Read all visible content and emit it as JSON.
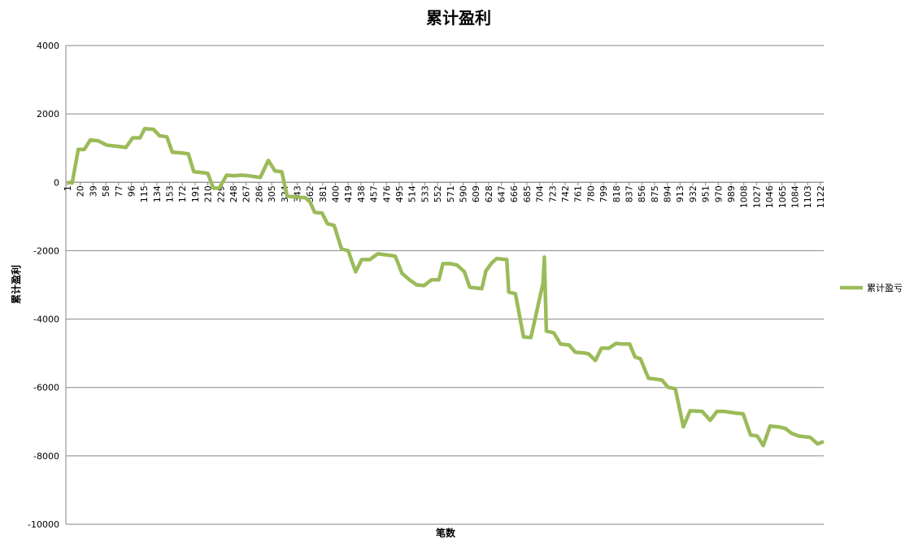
{
  "chart_data": {
    "type": "line",
    "title": "累计盈利",
    "x_label": "笔数",
    "y_label": "累计盈利",
    "x": [
      1,
      8,
      17,
      26,
      35,
      47,
      59,
      76,
      88,
      98,
      109,
      116,
      129,
      138,
      149,
      157,
      171,
      181,
      189,
      203,
      210,
      218,
      227,
      238,
      249,
      260,
      271,
      288,
      300,
      310,
      320,
      328,
      341,
      355,
      362,
      369,
      380,
      388,
      398,
      409,
      419,
      430,
      439,
      451,
      463,
      475,
      489,
      499,
      510,
      521,
      532,
      543,
      554,
      560,
      571,
      581,
      592,
      600,
      618,
      624,
      633,
      640,
      655,
      658,
      668,
      680,
      691,
      709,
      711,
      714,
      725,
      735,
      748,
      757,
      770,
      777,
      787,
      796,
      807,
      818,
      826,
      838,
      846,
      854,
      866,
      886,
      895,
      906,
      918,
      928,
      946,
      958,
      968,
      979,
      996,
      1007,
      1018,
      1028,
      1037,
      1047,
      1059,
      1070,
      1079,
      1090,
      1107,
      1118,
      1127
    ],
    "series": [
      {
        "name": "累计盈亏",
        "color": "#9bbb59",
        "values": [
          0,
          -20,
          960,
          960,
          1240,
          1210,
          1090,
          1050,
          1020,
          1300,
          1300,
          1570,
          1550,
          1360,
          1330,
          880,
          860,
          830,
          310,
          280,
          260,
          -170,
          -170,
          210,
          190,
          210,
          190,
          140,
          640,
          330,
          310,
          -400,
          -430,
          -450,
          -570,
          -880,
          -900,
          -1210,
          -1260,
          -1950,
          -2000,
          -2620,
          -2260,
          -2260,
          -2090,
          -2120,
          -2160,
          -2660,
          -2850,
          -3000,
          -3020,
          -2850,
          -2850,
          -2380,
          -2380,
          -2420,
          -2620,
          -3070,
          -3110,
          -2590,
          -2350,
          -2230,
          -2260,
          -3210,
          -3260,
          -4520,
          -4540,
          -2950,
          -2190,
          -4350,
          -4400,
          -4730,
          -4760,
          -4970,
          -4990,
          -5020,
          -5210,
          -4850,
          -4850,
          -4710,
          -4730,
          -4730,
          -5110,
          -5160,
          -5730,
          -5780,
          -5990,
          -6040,
          -7150,
          -6680,
          -6700,
          -6960,
          -6700,
          -6700,
          -6750,
          -6770,
          -7390,
          -7420,
          -7700,
          -7130,
          -7150,
          -7200,
          -7340,
          -7420,
          -7460,
          -7650,
          -7580
        ]
      }
    ],
    "xlim": [
      1,
      1127
    ],
    "xticks": [
      1,
      20,
      39,
      58,
      77,
      96,
      115,
      134,
      153,
      172,
      191,
      210,
      229,
      248,
      267,
      286,
      305,
      324,
      343,
      362,
      381,
      400,
      419,
      438,
      457,
      476,
      495,
      514,
      533,
      552,
      571,
      590,
      609,
      628,
      647,
      666,
      685,
      704,
      723,
      742,
      761,
      780,
      799,
      818,
      837,
      856,
      875,
      894,
      913,
      932,
      951,
      970,
      989,
      1008,
      1027,
      1046,
      1065,
      1084,
      1103,
      1122
    ],
    "ylim": [
      -10000,
      4000
    ],
    "yticks": [
      -10000,
      -8000,
      -6000,
      -4000,
      -2000,
      0,
      2000,
      4000
    ],
    "grid": true,
    "legend": "right"
  }
}
